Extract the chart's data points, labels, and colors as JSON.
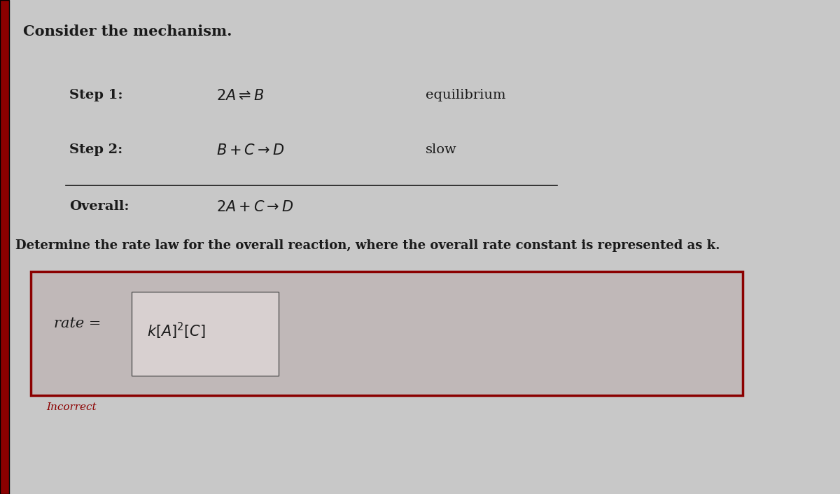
{
  "bg_color": "#c8c8c8",
  "title": "Consider the mechanism.",
  "step1_label": "Step 1:",
  "step1_note": "equilibrium",
  "step2_label": "Step 2:",
  "step2_note": "slow",
  "overall_label": "Overall:",
  "question": "Determine the rate law for the overall reaction, where the overall rate constant is represented as k.",
  "answer_box_border": "#8b0000",
  "answer_box_fill": "#c0b8b8",
  "rate_label": "rate = ",
  "incorrect_label": "Incorrect",
  "text_color": "#1a1a1a",
  "incorrect_color": "#8b0000",
  "left_bar_color": "#8b0000",
  "title_fontsize": 15,
  "label_fontsize": 14,
  "question_fontsize": 13,
  "answer_fontsize": 15,
  "incorrect_fontsize": 11
}
